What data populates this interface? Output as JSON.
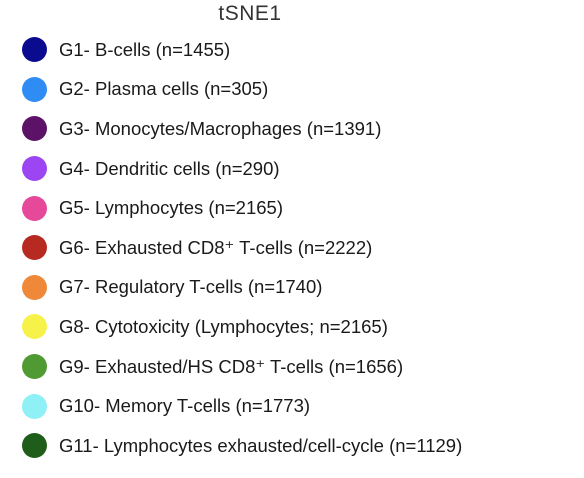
{
  "chart_data": {
    "type": "scatter",
    "xlabel": "tSNE1",
    "legend_placement": "bottom",
    "series": [
      {
        "name": "G1- B-cells (n=1455)",
        "color": "#0b0b8f"
      },
      {
        "name": "G2- Plasma cells (n=305)",
        "color": "#2f8cf4"
      },
      {
        "name": "G3- Monocytes/Macrophages (n=1391)",
        "color": "#5c1266"
      },
      {
        "name": "G4- Dendritic cells (n=290)",
        "color": "#9b46f2"
      },
      {
        "name": "G5- Lymphocytes (n=2165)",
        "color": "#e6489a"
      },
      {
        "name": "G6- Exhausted CD8⁺ T-cells (n=2222)",
        "color": "#b72a22"
      },
      {
        "name": "G7- Regulatory T-cells (n=1740)",
        "color": "#f0883a"
      },
      {
        "name": "G8- Cytotoxicity (Lymphocytes; n=2165)",
        "color": "#f7f24a"
      },
      {
        "name": "G9- Exhausted/HS CD8⁺ T-cells (n=1656)",
        "color": "#4f9a33"
      },
      {
        "name": "G10- Memory T-cells (n=1773)",
        "color": "#8ff0f5"
      },
      {
        "name": "G11- Lymphocytes exhausted/cell-cycle (n=1129)",
        "color": "#1f5d1a"
      }
    ]
  }
}
